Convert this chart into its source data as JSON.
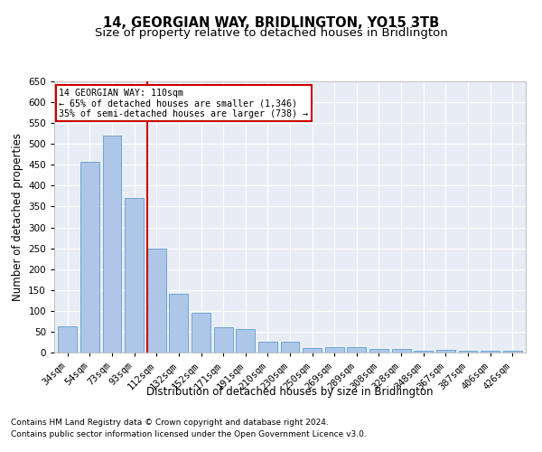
{
  "title": "14, GEORGIAN WAY, BRIDLINGTON, YO15 3TB",
  "subtitle": "Size of property relative to detached houses in Bridlington",
  "xlabel": "Distribution of detached houses by size in Bridlington",
  "ylabel": "Number of detached properties",
  "categories": [
    "34sqm",
    "54sqm",
    "73sqm",
    "93sqm",
    "112sqm",
    "132sqm",
    "152sqm",
    "171sqm",
    "191sqm",
    "210sqm",
    "230sqm",
    "250sqm",
    "269sqm",
    "289sqm",
    "308sqm",
    "328sqm",
    "348sqm",
    "367sqm",
    "387sqm",
    "406sqm",
    "426sqm"
  ],
  "values": [
    63,
    458,
    520,
    370,
    250,
    140,
    95,
    61,
    57,
    27,
    27,
    10,
    14,
    12,
    8,
    8,
    4,
    6,
    5,
    5,
    5
  ],
  "bar_color": "#aec6e8",
  "bar_edge_color": "#6fa8d0",
  "annotation_text_line1": "14 GEORGIAN WAY: 110sqm",
  "annotation_text_line2": "← 65% of detached houses are smaller (1,346)",
  "annotation_text_line3": "35% of semi-detached houses are larger (738) →",
  "vline_color": "#cc0000",
  "ylim": [
    0,
    650
  ],
  "yticks": [
    0,
    50,
    100,
    150,
    200,
    250,
    300,
    350,
    400,
    450,
    500,
    550,
    600,
    650
  ],
  "footnote1": "Contains HM Land Registry data © Crown copyright and database right 2024.",
  "footnote2": "Contains public sector information licensed under the Open Government Licence v3.0.",
  "bg_color": "#e8edf5",
  "title_fontsize": 10.5,
  "subtitle_fontsize": 9.5,
  "axis_label_fontsize": 8.5,
  "tick_fontsize": 7.5,
  "footnote_fontsize": 6.5
}
